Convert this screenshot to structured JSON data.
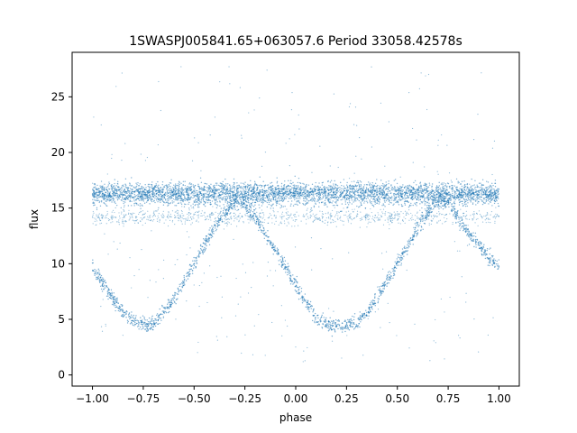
{
  "chart_data": {
    "type": "scatter",
    "title": "1SWASPJ005841.65+063057.6 Period 33058.42578s",
    "xlabel": "phase",
    "ylabel": "flux",
    "xlim": [
      -1.1,
      1.1
    ],
    "ylim": [
      -1.0,
      29.0
    ],
    "x_ticks": [
      -1.0,
      -0.75,
      -0.5,
      -0.25,
      0.0,
      0.25,
      0.5,
      0.75,
      1.0
    ],
    "x_tick_labels": [
      "−1.00",
      "−0.75",
      "−0.50",
      "−0.25",
      "0.00",
      "0.25",
      "0.50",
      "0.75",
      "1.00"
    ],
    "y_ticks": [
      0,
      5,
      10,
      15,
      20,
      25
    ],
    "y_tick_labels": [
      "0",
      "5",
      "10",
      "15",
      "20",
      "25"
    ],
    "grid": false,
    "marker_color": "#1f77b4",
    "series": [
      {
        "description_values": "phase-folded light curve, repeated over two cycles",
        "x": [
          -1.0,
          -0.95,
          -0.9,
          -0.85,
          -0.8,
          -0.75,
          -0.7,
          -0.65,
          -0.6,
          -0.55,
          -0.5,
          -0.45,
          -0.4,
          -0.35,
          -0.3,
          -0.25,
          -0.2,
          -0.15,
          -0.1,
          -0.05,
          0.0,
          0.05,
          0.1,
          0.15,
          0.2,
          0.25,
          0.3,
          0.35,
          0.4,
          0.45,
          0.5,
          0.55,
          0.6,
          0.65,
          0.7,
          0.75,
          0.8,
          0.85,
          0.9,
          0.95,
          1.0
        ],
        "y_baseline": [
          16.3,
          16.3,
          16.3,
          16.3,
          16.3,
          16.3,
          16.3,
          16.3,
          16.3,
          16.3,
          16.3,
          16.3,
          16.3,
          16.3,
          16.3,
          16.3,
          16.3,
          16.3,
          16.3,
          16.3,
          16.3,
          16.3,
          16.3,
          16.3,
          16.3,
          16.3,
          16.3,
          16.3,
          16.3,
          16.3,
          16.3,
          16.3,
          16.3,
          16.3,
          16.3,
          16.3,
          16.3,
          16.3,
          16.3,
          16.3,
          16.3
        ],
        "y_eclipse": [
          9.8,
          8.2,
          6.9,
          5.6,
          4.9,
          4.4,
          4.6,
          5.6,
          6.9,
          8.4,
          10.0,
          11.6,
          13.2,
          14.6,
          15.6,
          15.5,
          14.2,
          12.7,
          11.2,
          9.7,
          8.0,
          6.5,
          5.2,
          4.6,
          4.4,
          4.5,
          4.8,
          5.6,
          6.9,
          8.4,
          10.0,
          11.6,
          13.2,
          14.6,
          15.6,
          15.5,
          14.2,
          12.7,
          11.8,
          10.6,
          9.8
        ]
      }
    ]
  }
}
